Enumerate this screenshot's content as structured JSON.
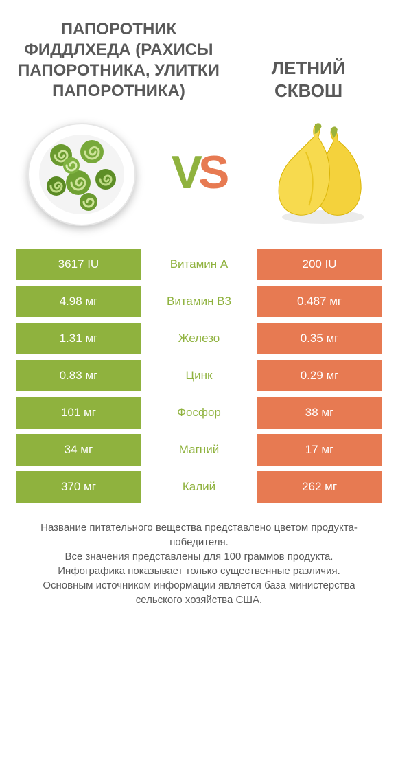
{
  "colors": {
    "left": "#8fb23e",
    "right": "#e77a52",
    "text": "#595959",
    "bg": "#ffffff"
  },
  "titles": {
    "left": "ПАПОРОТНИК ФИДДЛХЕДА (РАХИСЫ ПАПОРОТНИКА, УЛИТКИ ПАПОРОТНИКА)",
    "right": "ЛЕТНИЙ СКВОШ"
  },
  "vs": {
    "v": "V",
    "s": "S"
  },
  "rows": [
    {
      "left": "3617 IU",
      "label": "Витамин A",
      "right": "200 IU",
      "winner": "left"
    },
    {
      "left": "4.98 мг",
      "label": "Витамин B3",
      "right": "0.487 мг",
      "winner": "left"
    },
    {
      "left": "1.31 мг",
      "label": "Железо",
      "right": "0.35 мг",
      "winner": "left"
    },
    {
      "left": "0.83 мг",
      "label": "Цинк",
      "right": "0.29 мг",
      "winner": "left"
    },
    {
      "left": "101 мг",
      "label": "Фосфор",
      "right": "38 мг",
      "winner": "left"
    },
    {
      "left": "34 мг",
      "label": "Магний",
      "right": "17 мг",
      "winner": "left"
    },
    {
      "left": "370 мг",
      "label": "Калий",
      "right": "262 мг",
      "winner": "left"
    }
  ],
  "footer": [
    "Название питательного вещества представлено цветом продукта-победителя.",
    "Все значения представлены для 100 граммов продукта.",
    "Инфографика показывает только существенные различия.",
    "Основным источником информации является база министерства сельского хозяйства США."
  ]
}
